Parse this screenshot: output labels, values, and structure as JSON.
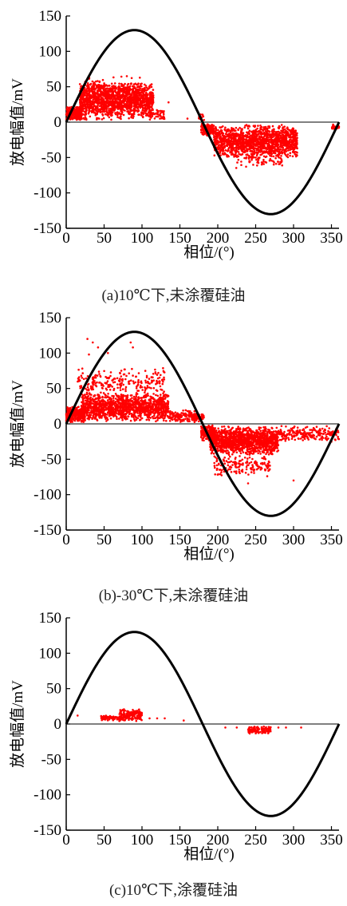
{
  "figure": {
    "panels": [
      {
        "caption": "(a)10℃下,未涂覆硅油"
      },
      {
        "caption": "(b)-30℃下,未涂覆硅油"
      },
      {
        "caption": "(c)10℃下,涂覆硅油"
      }
    ]
  },
  "colors": {
    "sine": "#000000",
    "points": "#ff0000",
    "axis": "#000000"
  },
  "chart_data": [
    {
      "type": "scatter",
      "xlabel": "相位/(°)",
      "ylabel": "放电幅值/mV",
      "xlim": [
        0,
        360
      ],
      "ylim": [
        -150,
        150
      ],
      "xticks": [
        0,
        50,
        100,
        150,
        200,
        250,
        300,
        350
      ],
      "yticks": [
        150,
        100,
        50,
        0,
        -50,
        -100,
        -150
      ],
      "reference_curve": {
        "type": "sine",
        "amplitude": 130,
        "period": 360
      },
      "clusters": [
        {
          "x_range": [
            0,
            20
          ],
          "y_range": [
            2,
            22
          ],
          "count": 320
        },
        {
          "x_range": [
            18,
            115
          ],
          "y_range": [
            2,
            58
          ],
          "count": 1500
        },
        {
          "x_range": [
            25,
            100
          ],
          "y_range": [
            30,
            65
          ],
          "count": 120
        },
        {
          "x_range": [
            110,
            130
          ],
          "y_range": [
            2,
            18
          ],
          "count": 40
        },
        {
          "x_range": [
            175,
            182
          ],
          "y_range": [
            2,
            12
          ],
          "count": 15
        },
        {
          "x_range": [
            178,
            195
          ],
          "y_range": [
            -20,
            -2
          ],
          "count": 180
        },
        {
          "x_range": [
            195,
            305
          ],
          "y_range": [
            -52,
            -3
          ],
          "count": 1400
        },
        {
          "x_range": [
            220,
            285
          ],
          "y_range": [
            -65,
            -40
          ],
          "count": 70
        },
        {
          "x_range": [
            350,
            360
          ],
          "y_range": [
            -10,
            -2
          ],
          "count": 40
        }
      ],
      "points": [
        [
          115,
          35
        ],
        [
          135,
          28
        ],
        [
          160,
          5
        ],
        [
          97,
          42
        ],
        [
          80,
          65
        ]
      ]
    },
    {
      "type": "scatter",
      "xlabel": "相位/(°)",
      "ylabel": "放电幅值/mV",
      "xlim": [
        0,
        360
      ],
      "ylim": [
        -150,
        150
      ],
      "xticks": [
        0,
        50,
        100,
        150,
        200,
        250,
        300,
        350
      ],
      "yticks": [
        150,
        100,
        50,
        0,
        -50,
        -100,
        -150
      ],
      "reference_curve": {
        "type": "sine",
        "amplitude": 130,
        "period": 360
      },
      "clusters": [
        {
          "x_range": [
            0,
            25
          ],
          "y_range": [
            2,
            25
          ],
          "count": 350
        },
        {
          "x_range": [
            20,
            135
          ],
          "y_range": [
            2,
            45
          ],
          "count": 1300
        },
        {
          "x_range": [
            15,
            130
          ],
          "y_range": [
            40,
            80
          ],
          "count": 230
        },
        {
          "x_range": [
            135,
            170
          ],
          "y_range": [
            2,
            20
          ],
          "count": 120
        },
        {
          "x_range": [
            165,
            182
          ],
          "y_range": [
            3,
            15
          ],
          "count": 90
        },
        {
          "x_range": [
            178,
            195
          ],
          "y_range": [
            -25,
            -2
          ],
          "count": 200
        },
        {
          "x_range": [
            190,
            280
          ],
          "y_range": [
            -45,
            -3
          ],
          "count": 1300
        },
        {
          "x_range": [
            195,
            270
          ],
          "y_range": [
            -75,
            -40
          ],
          "count": 160
        },
        {
          "x_range": [
            280,
            360
          ],
          "y_range": [
            -25,
            -2
          ],
          "count": 220
        }
      ],
      "points": [
        [
          28,
          120
        ],
        [
          35,
          115
        ],
        [
          85,
          115
        ],
        [
          42,
          108
        ],
        [
          30,
          98
        ],
        [
          55,
          100
        ],
        [
          88,
          108
        ],
        [
          160,
          18
        ],
        [
          300,
          -80
        ],
        [
          240,
          -84
        ],
        [
          350,
          -25
        ]
      ]
    },
    {
      "type": "scatter",
      "xlabel": "相位/(°)",
      "ylabel": "放电幅值/mV",
      "xlim": [
        0,
        360
      ],
      "ylim": [
        -150,
        150
      ],
      "xticks": [
        0,
        50,
        100,
        150,
        200,
        250,
        300,
        350
      ],
      "yticks": [
        150,
        100,
        50,
        0,
        -50,
        -100,
        -150
      ],
      "reference_curve": {
        "type": "sine",
        "amplitude": 130,
        "period": 360
      },
      "clusters": [
        {
          "x_range": [
            45,
            75
          ],
          "y_range": [
            4,
            12
          ],
          "count": 90
        },
        {
          "x_range": [
            70,
            100
          ],
          "y_range": [
            3,
            22
          ],
          "count": 170
        },
        {
          "x_range": [
            240,
            270
          ],
          "y_range": [
            -14,
            -3
          ],
          "count": 110
        }
      ],
      "points": [
        [
          5,
          12
        ],
        [
          15,
          12
        ],
        [
          110,
          8
        ],
        [
          120,
          8
        ],
        [
          130,
          8
        ],
        [
          155,
          5
        ],
        [
          210,
          -5
        ],
        [
          225,
          -5
        ],
        [
          280,
          -5
        ],
        [
          290,
          -5
        ],
        [
          310,
          -5
        ]
      ]
    }
  ]
}
